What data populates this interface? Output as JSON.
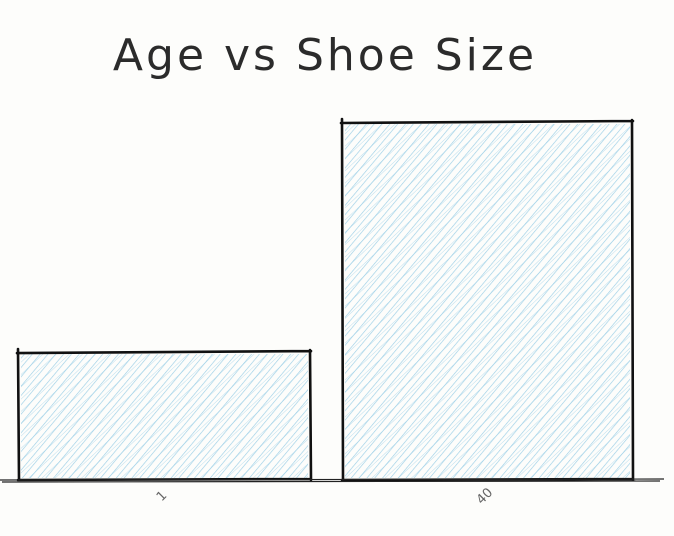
{
  "chart_data": {
    "type": "bar",
    "title": "Age vs Shoe Size",
    "categories": [
      "1",
      "40"
    ],
    "values": [
      8,
      22.5
    ],
    "xlabel": "",
    "ylabel": "",
    "ylim": [
      0,
      22.5
    ],
    "grid": false,
    "legend": "none",
    "colors": {
      "bar_fill": "#9ccfe6",
      "bar_stroke": "#111111",
      "axis": "#222222",
      "title": "#2b2b2b"
    }
  }
}
